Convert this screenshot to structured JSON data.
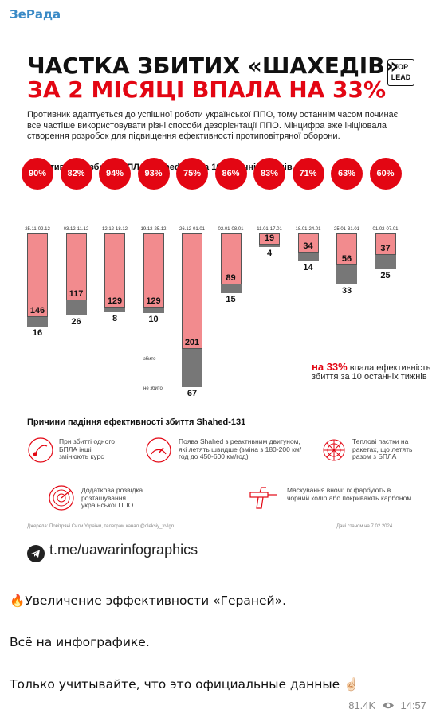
{
  "channel_name": "ЗеРада",
  "infographic": {
    "title_line1": "ЧАСТКА ЗБИТИХ «ШАХЕДІВ»",
    "title_line2": "ЗА 2 МІСЯЦІ ВПАЛА НА 33%",
    "logo_line1": "TOP",
    "logo_line2": "LEAD",
    "lead_text": "Противник адаптується до успішної роботи української ППО, тому останнім часом починає все частіше використовувати різні способи дезорієнтації ППО. Мінцифра вже ініціювала створення розробок для підвищення ефективності протиповітряної оборони.",
    "section_chart": "Ефективність збиття БПЛА Shahed-131 за 10 останніх тижнів",
    "section_reasons": "Причини падіння ефективності збиття Shahed-131",
    "label_shot": "збито",
    "label_not_shot": "не збито",
    "stat_value": "на 33%",
    "stat_text": "впала ефективність збиття за 10 останніх тижнів",
    "reasons": [
      {
        "icon": "route-change-icon",
        "text": "При збитті одного БПЛА інші змінюють курс"
      },
      {
        "icon": "speedometer-icon",
        "text": "Поява Shahed з реактивним двигуном, які летять швидше (зміна з 180-200 км/год до 450-600 км/год)"
      },
      {
        "icon": "web-trap-icon",
        "text": "Теплові пастки на ракетах, що летять разом з БПЛА"
      },
      {
        "icon": "radar-icon",
        "text": "Додаткова розвідка розташування української ППО"
      },
      {
        "icon": "spray-gun-icon",
        "text": "Маскування вночі: їх фарбують в чорний колір або покривають карбоном"
      }
    ],
    "source_text": "Джерела: Повітряні Сили України, телеграм канал @oleksiy_trvlgn",
    "asof_text": "Дані станом на 7.02.2024",
    "telegram_link": "t.me/uawarinfographics"
  },
  "chart_data": {
    "type": "bar",
    "title": "Ефективність збиття БПЛА Shahed-131 за 10 останніх тижнів",
    "categories": [
      "25.11-02.12",
      "03.12-11.12",
      "12.12-18.12",
      "19.12-25.12",
      "26.12-01.01",
      "02.01-08.01",
      "11.01-17.01",
      "18.01-24.01",
      "25.01-31.01",
      "01.02-07.01"
    ],
    "series": [
      {
        "name": "збито",
        "values": [
          146,
          117,
          129,
          129,
          201,
          89,
          19,
          34,
          56,
          37
        ]
      },
      {
        "name": "не збито",
        "values": [
          16,
          26,
          8,
          10,
          67,
          15,
          4,
          14,
          33,
          25
        ]
      }
    ],
    "efficiency_labels": [
      "90%",
      "82%",
      "94%",
      "93%",
      "75%",
      "86%",
      "83%",
      "71%",
      "63%",
      "60%"
    ],
    "colors": {
      "shot": "#f28b8e",
      "not_shot": "#777777",
      "circle": "#e30613"
    }
  },
  "post": {
    "line1": "🔥Увеличение эффективности «Гераней».",
    "line2": "Всё на инфографике.",
    "line3": "Только учитывайте, что это официальные данные ☝🏻",
    "views": "81.4K",
    "time": "14:57"
  }
}
